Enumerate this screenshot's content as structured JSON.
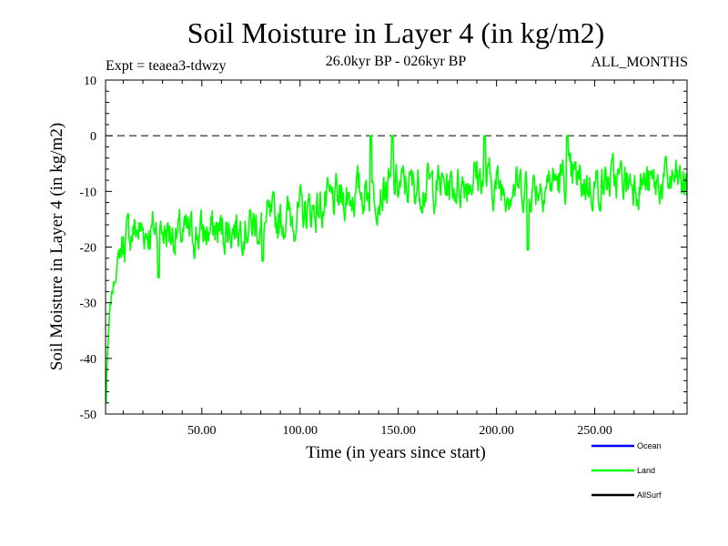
{
  "chart_data": {
    "type": "line",
    "title": "Soil Moisture in Layer 4 (in kg/m2)",
    "subtitle": "26.0kyr BP - 026kyr BP",
    "experiment_label": "Expt = teaea3-tdwzy",
    "period_label": "ALL_MONTHS",
    "xlabel": "Time (in years since start)",
    "ylabel": "Soil Moisture in Layer 4 (in kg/m2)",
    "xlim": [
      1,
      297
    ],
    "ylim": [
      -50,
      10
    ],
    "x_ticks": [
      50,
      100,
      150,
      200,
      250
    ],
    "x_tick_labels": [
      "50.00",
      "100.00",
      "150.00",
      "200.00",
      "250.00"
    ],
    "y_ticks": [
      10,
      0,
      -10,
      -20,
      -30,
      -40,
      -50
    ],
    "y_tick_labels": [
      "10",
      "0",
      "-10",
      "-20",
      "-30",
      "-40",
      "-50"
    ],
    "reference_line": 0,
    "legend": [
      {
        "name": "Ocean",
        "color": "#0000ff"
      },
      {
        "name": "Land",
        "color": "#00ff00"
      },
      {
        "name": "AllSurf",
        "color": "#000000"
      }
    ],
    "legend_position": "bottom-right",
    "series": [
      {
        "name": "Land",
        "color": "#00ff00",
        "points_per_year": 3,
        "anchor_years": [
          1,
          2,
          3,
          4,
          6,
          8,
          10,
          15,
          20,
          30,
          40,
          50,
          60,
          70,
          80,
          90,
          100,
          110,
          120,
          130,
          140,
          150,
          160,
          170,
          180,
          190,
          200,
          210,
          220,
          230,
          240,
          250,
          260,
          270,
          280,
          290,
          297
        ],
        "anchor_means": [
          -46,
          -40,
          -33,
          -29,
          -25,
          -21,
          -19,
          -17,
          -17,
          -17,
          -18,
          -17.5,
          -17,
          -16,
          -16,
          -15,
          -14,
          -13,
          -11.5,
          -10,
          -10,
          -9,
          -9,
          -9,
          -9,
          -7,
          -9,
          -9,
          -9,
          -8,
          -8,
          -9,
          -8,
          -8,
          -9,
          -8,
          -9
        ],
        "noise_amplitude": 3.5,
        "random_seed": 7,
        "annotated_extremes": [
          {
            "year": 1,
            "value": -48
          },
          {
            "year": 136,
            "value": 0
          },
          {
            "year": 147,
            "value": 0
          },
          {
            "year": 194,
            "value": 0
          },
          {
            "year": 236,
            "value": 0
          },
          {
            "year": 28,
            "value": -25.5
          },
          {
            "year": 216,
            "value": -20.5
          },
          {
            "year": 81,
            "value": -22.5
          }
        ]
      }
    ]
  }
}
